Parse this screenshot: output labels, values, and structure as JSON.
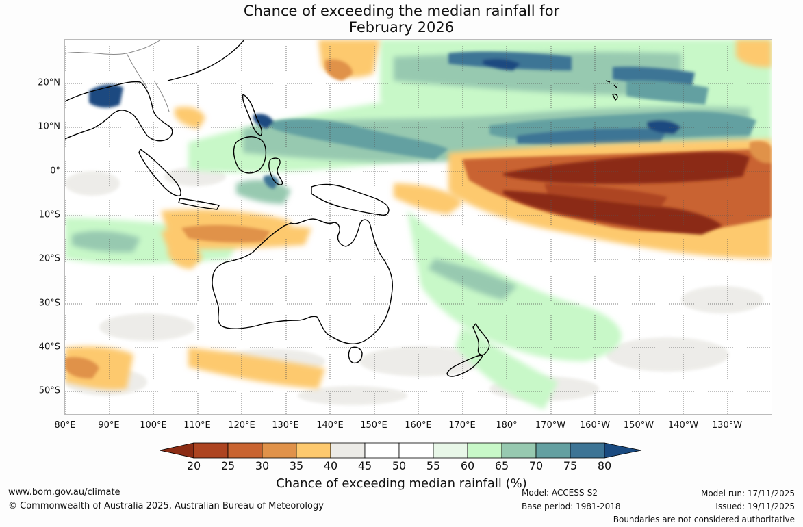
{
  "title": {
    "line1": "Chance of exceeding the median rainfall for",
    "line2": "February 2026"
  },
  "map": {
    "lat_labels": [
      "20°N",
      "10°N",
      "0°",
      "10°S",
      "20°S",
      "30°S",
      "40°S",
      "50°S"
    ],
    "lat_values": [
      20,
      10,
      0,
      -10,
      -20,
      -30,
      -40,
      -50
    ],
    "lon_labels": [
      "80°E",
      "90°E",
      "100°E",
      "110°E",
      "120°E",
      "130°E",
      "140°E",
      "150°E",
      "160°E",
      "170°E",
      "180°",
      "170°W",
      "160°W",
      "150°W",
      "140°W",
      "130°W"
    ],
    "lon_values": [
      80,
      90,
      100,
      110,
      120,
      130,
      140,
      150,
      160,
      170,
      180,
      190,
      200,
      210,
      220,
      230
    ],
    "lon_range": [
      80,
      240
    ],
    "lat_range": [
      -55,
      30
    ]
  },
  "colorbar": {
    "ticks": [
      "20",
      "25",
      "30",
      "35",
      "40",
      "45",
      "50",
      "55",
      "60",
      "65",
      "70",
      "75",
      "80"
    ],
    "colors": [
      "#8b2c14",
      "#ad4421",
      "#c96431",
      "#e0924a",
      "#fdc96e",
      "#ecebe7",
      "#ffffff",
      "#ffffff",
      "#e8f7e8",
      "#c8f8c8",
      "#97c9b0",
      "#64a0a1",
      "#3d7495",
      "#1a4a80"
    ],
    "title": "Chance of exceeding median rainfall (%)"
  },
  "footer": {
    "url": "www.bom.gov.au/climate",
    "copyright": "© Commonwealth of Australia 2025, Australian Bureau of Meteorology",
    "model": "Model: ACCESS-S2",
    "base_period": "Base period: 1981-2018",
    "model_run": "Model run: 17/11/2025",
    "issued": "Issued: 19/11/2025",
    "boundaries": "Boundaries are not considered authoritative"
  }
}
